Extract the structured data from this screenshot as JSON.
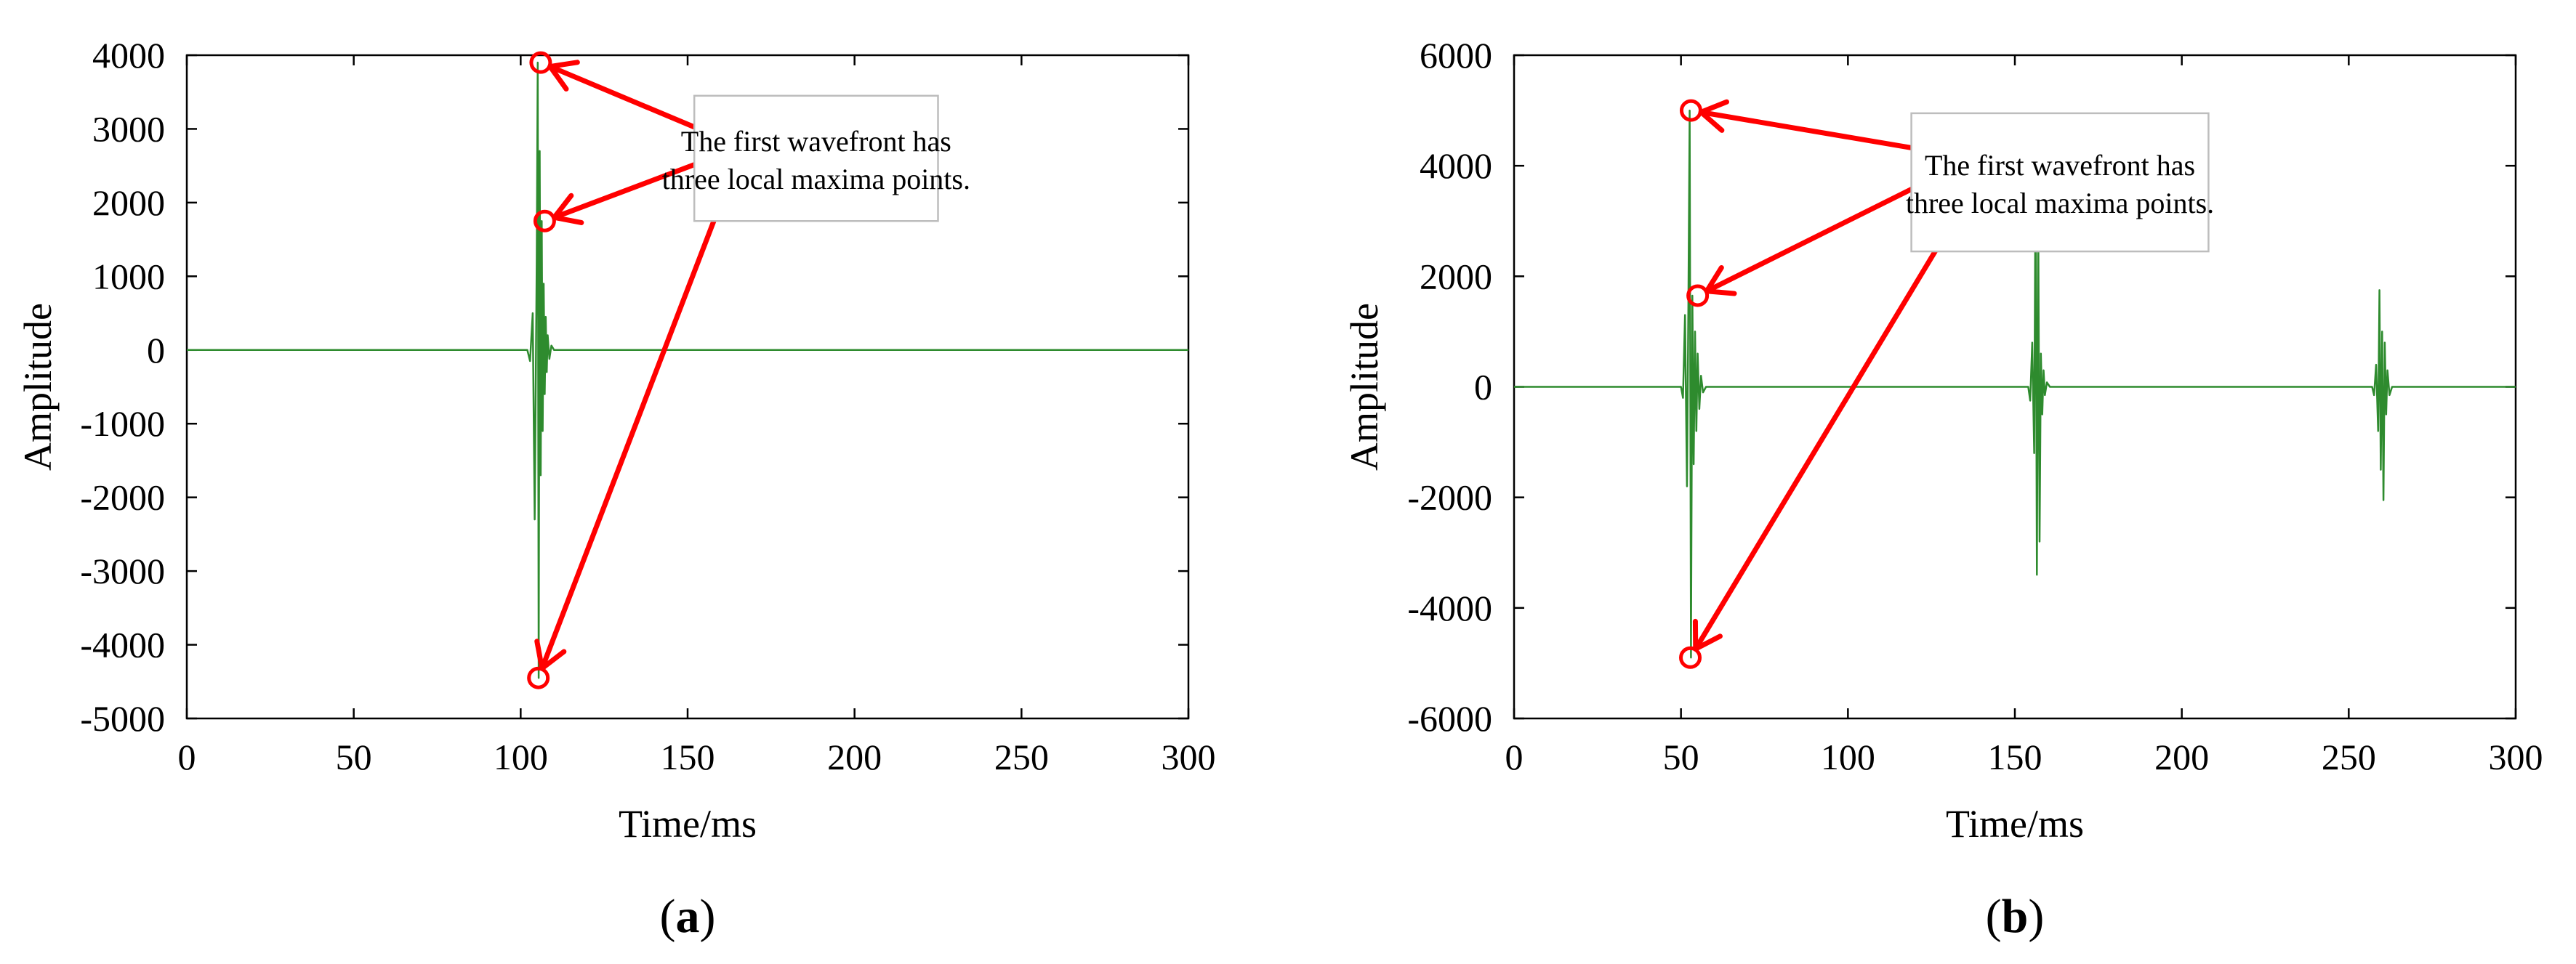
{
  "chart_data": [
    {
      "type": "line",
      "panel_label": "a",
      "xlabel": "Time/ms",
      "ylabel": "Amplitude",
      "xlim": [
        0,
        300
      ],
      "ylim": [
        -5000,
        4000
      ],
      "xticks": [
        0,
        50,
        100,
        150,
        200,
        250,
        300
      ],
      "yticks": [
        -5000,
        -4000,
        -3000,
        -2000,
        -1000,
        0,
        1000,
        2000,
        3000,
        4000
      ],
      "grid": false,
      "series": [
        {
          "color": "#2e8b2e",
          "x": [
            0,
            102,
            102.8,
            103.6,
            104.2,
            104.8,
            105.1,
            105.4,
            105.7,
            106.0,
            106.3,
            106.6,
            106.9,
            107.2,
            107.5,
            107.8,
            108.1,
            108.6,
            109.2,
            110,
            300
          ],
          "y": [
            0,
            0,
            -150,
            500,
            -2300,
            1200,
            3900,
            -4450,
            2700,
            -1700,
            1750,
            -1100,
            900,
            -600,
            450,
            -300,
            200,
            -120,
            60,
            0,
            0
          ]
        }
      ],
      "annotations": [
        {
          "text": "The first wavefront has three local maxima points.",
          "box_x": [
            152,
            225
          ],
          "box_y": [
            1750,
            3450
          ],
          "points": [
            [
              106,
              3900
            ],
            [
              107.2,
              1750
            ],
            [
              105.3,
              -4450
            ]
          ]
        }
      ]
    },
    {
      "type": "line",
      "panel_label": "b",
      "xlabel": "Time/ms",
      "ylabel": "Amplitude",
      "xlim": [
        0,
        300
      ],
      "ylim": [
        -6000,
        6000
      ],
      "xticks": [
        0,
        50,
        100,
        150,
        200,
        250,
        300
      ],
      "yticks": [
        -6000,
        -4000,
        -2000,
        0,
        2000,
        4000,
        6000
      ],
      "grid": false,
      "series": [
        {
          "color": "#2e8b2e",
          "x": [
            0,
            50,
            50.6,
            51.2,
            51.8,
            52.2,
            52.6,
            53.0,
            53.4,
            53.8,
            54.2,
            54.6,
            55.0,
            55.5,
            56.0,
            56.6,
            57.5,
            154,
            154.6,
            155.2,
            155.8,
            156.2,
            156.6,
            157.0,
            157.4,
            157.8,
            158.2,
            158.6,
            159.0,
            159.6,
            160.5,
            257,
            257.6,
            258.2,
            258.8,
            259.2,
            259.6,
            260.0,
            260.4,
            260.8,
            261.2,
            261.6,
            262.2,
            263,
            300
          ],
          "y": [
            0,
            0,
            -200,
            1300,
            -1800,
            1400,
            5000,
            -4900,
            1650,
            -1400,
            1000,
            -800,
            600,
            -400,
            200,
            -100,
            0,
            0,
            -250,
            800,
            -1200,
            4000,
            -3400,
            3000,
            -2800,
            600,
            -500,
            300,
            -150,
            80,
            0,
            0,
            -150,
            400,
            -800,
            1750,
            -1500,
            1000,
            -2050,
            800,
            -500,
            300,
            -150,
            0,
            0
          ]
        }
      ],
      "annotations": [
        {
          "text": "The first wavefront has three local maxima points.",
          "box_x": [
            119,
            208
          ],
          "box_y": [
            2450,
            4950
          ],
          "points": [
            [
              53,
              5000
            ],
            [
              55,
              1650
            ],
            [
              52.8,
              -4900
            ]
          ]
        }
      ]
    }
  ]
}
